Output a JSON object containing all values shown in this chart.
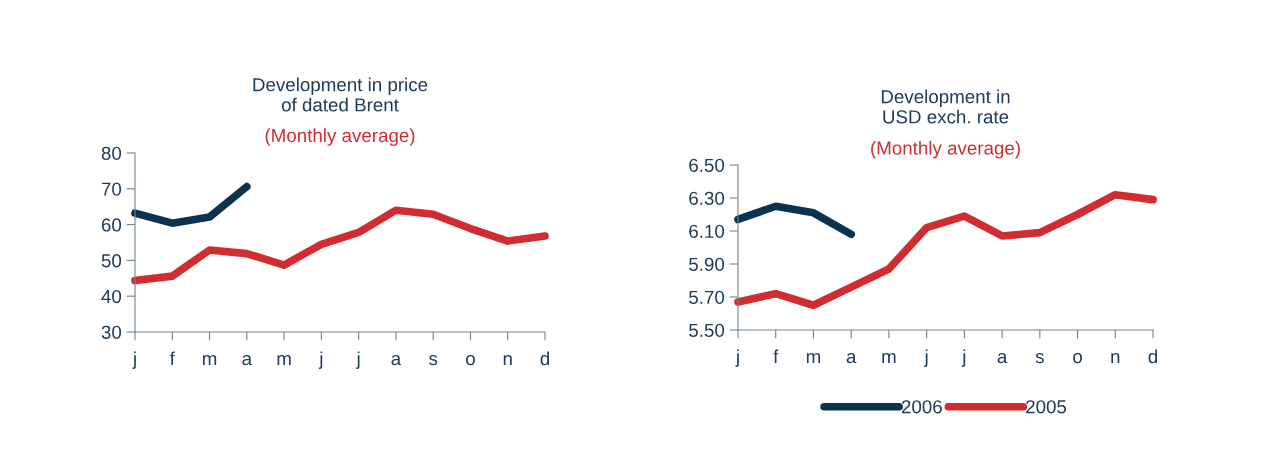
{
  "chart_data": [
    {
      "type": "line",
      "title": "Development in price\nof dated Brent",
      "subtitle": "(Monthly average)",
      "categories": [
        "j",
        "f",
        "m",
        "a",
        "m",
        "j",
        "j",
        "a",
        "s",
        "o",
        "n",
        "d"
      ],
      "series": [
        {
          "color": "#0b3350",
          "values": [
            63.2,
            60.4,
            62.1,
            70.6,
            null,
            null,
            null,
            null,
            null,
            null,
            null,
            null
          ]
        },
        {
          "color": "#d12c2f",
          "values": [
            44.4,
            45.6,
            52.9,
            51.9,
            48.7,
            54.5,
            57.8,
            64.0,
            62.9,
            58.9,
            55.4,
            56.8
          ]
        }
      ],
      "ylim": [
        30,
        80
      ],
      "yticks": [
        30,
        40,
        50,
        60,
        70,
        80
      ],
      "grid": false,
      "legend": false,
      "marker": "none",
      "line_style": "solid"
    },
    {
      "type": "line",
      "title": "Development in\nUSD exch. rate",
      "subtitle": "(Monthly average)",
      "categories": [
        "j",
        "f",
        "m",
        "a",
        "m",
        "j",
        "j",
        "a",
        "s",
        "o",
        "n",
        "d"
      ],
      "series": [
        {
          "name": "2006",
          "color": "#0b3350",
          "values": [
            6.17,
            6.25,
            6.21,
            6.08,
            null,
            null,
            null,
            null,
            null,
            null,
            null,
            null
          ]
        },
        {
          "name": "2005",
          "color": "#d12c2f",
          "values": [
            5.67,
            5.72,
            5.65,
            5.76,
            5.87,
            6.12,
            6.19,
            6.07,
            6.09,
            6.2,
            6.32,
            6.29
          ]
        }
      ],
      "ylim": [
        5.5,
        6.5
      ],
      "yticks": [
        {
          "value": 5.5,
          "label": "5.50"
        },
        {
          "value": 5.7,
          "label": "5.70"
        },
        {
          "value": 5.9,
          "label": "5.90"
        },
        {
          "value": 6.1,
          "label": "6.10"
        },
        {
          "value": 6.3,
          "label": "6.30"
        },
        {
          "value": 6.5,
          "label": "6.50"
        }
      ],
      "grid": false,
      "legend": "bottom",
      "marker": "none",
      "line_style": "solid"
    }
  ]
}
